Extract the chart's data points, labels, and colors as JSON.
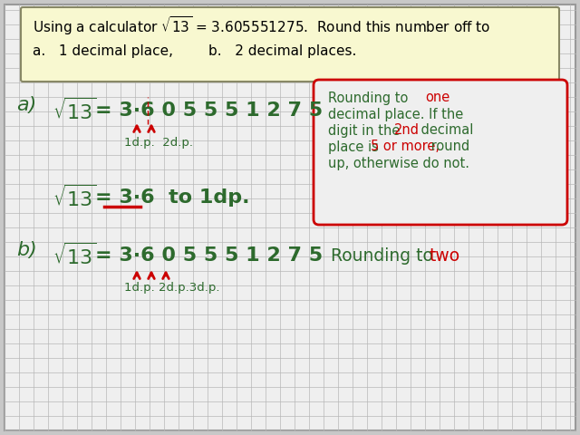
{
  "bg_color": "#c8c8c8",
  "grid_color": "#b8b8b8",
  "paper_color": "#efefef",
  "header_bg": "#f8f8d0",
  "dark_green": "#2d6a2d",
  "red": "#cc0000",
  "note_line1_green": "Rounding to ",
  "note_line1_red": "one",
  "note_line2": "decimal place. If the",
  "note_line3": "digit in the ",
  "note_line3_red": "2nd",
  "note_line3_end": " decimal",
  "note_line4": "place is ",
  "note_line4_red": "5 or more,",
  "note_line4_end": " round",
  "note_line5": "up, otherwise do not.",
  "b_note_green": "Rounding to ",
  "b_note_red": "two"
}
